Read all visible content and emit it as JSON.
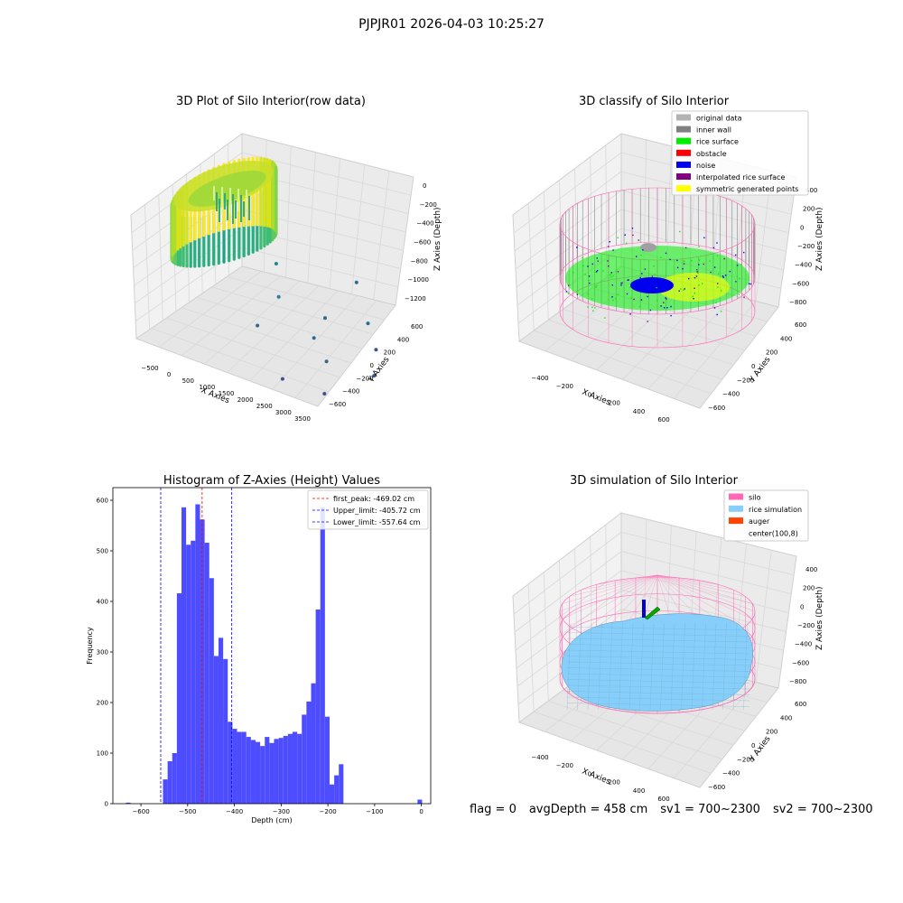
{
  "suptitle": "PJPJR01 2026-04-03 10:25:27",
  "footer": {
    "flag": "flag = 0",
    "avg_depth": "avgDepth = 458 cm",
    "sv1": "sv1 = 700~2300",
    "sv2": "sv2 = 700~2300"
  },
  "colors": {
    "histogram_bar": "#4d4dff",
    "first_peak_line": "#ff0000",
    "limit_lines": "#0000ff",
    "original_data": "#b3b3b3",
    "inner_wall": "#808080",
    "rice_surface": "#00ee00",
    "obstacle": "#ff0000",
    "noise": "#0000ee",
    "interpolated_rice_surface": "#800080",
    "symmetric_generated_points": "#ffff00",
    "silo": "#ff69b4",
    "rice_simulation": "#87cefa",
    "auger": "#ff4500"
  },
  "chart_data": [
    {
      "type": "scatter",
      "projection": "3d",
      "title": "3D Plot of Silo Interior(row data)",
      "xlabel": "X Axies",
      "ylabel": "Y Axies",
      "zlabel": "Z Axies (Depth)",
      "xticks": [
        "−500",
        "0",
        "500",
        "1000",
        "1500",
        "2000",
        "2500",
        "3000",
        "3500"
      ],
      "yticks": [
        "−600",
        "−400",
        "−200",
        "0",
        "200",
        "400",
        "600"
      ],
      "zticks": [
        "−1200",
        "−1000",
        "−800",
        "−600",
        "−400",
        "−200",
        "0"
      ],
      "colormap": "viridis",
      "outlier_points": [
        {
          "x": 800,
          "y": 200,
          "z": -560
        },
        {
          "x": 1300,
          "y": 0,
          "z": -700
        },
        {
          "x": 1500,
          "y": -300,
          "z": -780
        },
        {
          "x": 2100,
          "y": 100,
          "z": -850
        },
        {
          "x": 2300,
          "y": -100,
          "z": -900
        },
        {
          "x": 2600,
          "y": 300,
          "z": -950
        },
        {
          "x": 2800,
          "y": -200,
          "z": -1000
        },
        {
          "x": 3000,
          "y": 200,
          "z": -1100
        },
        {
          "x": 3200,
          "y": -400,
          "z": -1150
        },
        {
          "x": 3400,
          "y": 0,
          "z": -1180
        },
        {
          "x": 1900,
          "y": 500,
          "z": -760
        },
        {
          "x": 2500,
          "y": -500,
          "z": -1050
        }
      ]
    },
    {
      "type": "scatter",
      "projection": "3d",
      "title": "3D classify of Silo Interior",
      "xlabel": "X Axies",
      "ylabel": "Y Axies",
      "zlabel": "Z Axies (Depth)",
      "xticks": [
        "−400",
        "−200",
        "0",
        "200",
        "400",
        "600"
      ],
      "yticks": [
        "−600",
        "−400",
        "−200",
        "0",
        "200",
        "400",
        "600"
      ],
      "zticks": [
        "−800",
        "−600",
        "−400",
        "−200",
        "0",
        "200",
        "400"
      ],
      "legend_position": "top-right",
      "legend": [
        {
          "label": "original data",
          "color": "#b3b3b3"
        },
        {
          "label": "inner wall",
          "color": "#808080"
        },
        {
          "label": "rice surface",
          "color": "#00ee00"
        },
        {
          "label": "obstacle",
          "color": "#ff0000"
        },
        {
          "label": "noise",
          "color": "#0000ee"
        },
        {
          "label": "interpolated rice surface",
          "color": "#800080"
        },
        {
          "label": "symmetric generated points",
          "color": "#ffff00"
        }
      ]
    },
    {
      "type": "bar",
      "title": "Histogram of Z-Axies (Height) Values",
      "xlabel": "Depth (cm)",
      "ylabel": "Frequency",
      "xlim": [
        -660,
        20
      ],
      "ylim": [
        0,
        625
      ],
      "xticks": [
        -600,
        -500,
        -400,
        -300,
        -200,
        -100,
        0
      ],
      "yticks": [
        0,
        100,
        200,
        300,
        400,
        500,
        600
      ],
      "tick_labels_x": [
        "−600",
        "−500",
        "−400",
        "−300",
        "−200",
        "−100",
        "0"
      ],
      "tick_labels_y": [
        "0",
        "100",
        "200",
        "300",
        "400",
        "500",
        "600"
      ],
      "bin_width": 9.9,
      "bin_starts": [
        -632,
        -622.1,
        -612.2,
        -602.3,
        -592.4,
        -582.5,
        -572.6,
        -562.7,
        -552.8,
        -542.9,
        -533,
        -523.1,
        -513.2,
        -503.3,
        -493.4,
        -483.5,
        -473.6,
        -463.7,
        -453.8,
        -443.9,
        -434,
        -424.1,
        -414.2,
        -404.3,
        -394.4,
        -384.5,
        -374.6,
        -364.7,
        -354.8,
        -344.9,
        -335,
        -325.1,
        -315.2,
        -305.3,
        -295.4,
        -285.5,
        -275.6,
        -265.7,
        -255.8,
        -245.9,
        -236,
        -226.1,
        -216.2,
        -206.3,
        -196.4,
        -186.5,
        -176.6,
        -166.7,
        -156.8,
        -146.9,
        -137,
        -127.1,
        -117.2,
        -107.3,
        -97.4,
        -87.5,
        -77.6,
        -67.7,
        -57.8,
        -47.9,
        -38,
        -28.1,
        -18.2,
        -8.3
      ],
      "values": [
        2,
        0,
        0,
        0,
        0,
        0,
        0,
        0,
        48,
        84,
        100,
        416,
        586,
        512,
        520,
        592,
        562,
        516,
        446,
        292,
        328,
        286,
        162,
        148,
        142,
        142,
        132,
        126,
        122,
        114,
        132,
        120,
        128,
        130,
        134,
        138,
        142,
        138,
        176,
        202,
        238,
        384,
        586,
        172,
        38,
        56,
        78,
        0,
        0,
        0,
        0,
        0,
        0,
        0,
        0,
        0,
        0,
        0,
        0,
        0,
        0,
        0,
        0,
        8
      ],
      "vlines": [
        {
          "label": "first_peak: -469.02 cm",
          "x": -469.02,
          "color": "#ff0000",
          "style": "dashed"
        },
        {
          "label": "Upper_limit: -405.72 cm",
          "x": -405.72,
          "color": "#0000ff",
          "style": "dashed"
        },
        {
          "label": "Lower_limit: -557.64 cm",
          "x": -557.64,
          "color": "#0000ff",
          "style": "dashed"
        }
      ],
      "legend_position": "top-right"
    },
    {
      "type": "surface",
      "projection": "3d",
      "title": "3D simulation of Silo Interior",
      "xlabel": "X Axies",
      "ylabel": "Y Axies",
      "zlabel": "Z Axies (Depth)",
      "xticks": [
        "−400",
        "−200",
        "0",
        "200",
        "400",
        "600"
      ],
      "yticks": [
        "−600",
        "−400",
        "−200",
        "0",
        "200",
        "400",
        "600"
      ],
      "zticks": [
        "−800",
        "−600",
        "−400",
        "−200",
        "0",
        "200",
        "400"
      ],
      "legend_position": "top-right",
      "legend": [
        {
          "label": "silo",
          "color": "#ff69b4"
        },
        {
          "label": "rice simulation",
          "color": "#87cefa"
        },
        {
          "label": "auger",
          "color": "#ff4500"
        },
        {
          "label": "center(100,8)",
          "color": "#ffffff"
        }
      ]
    }
  ]
}
